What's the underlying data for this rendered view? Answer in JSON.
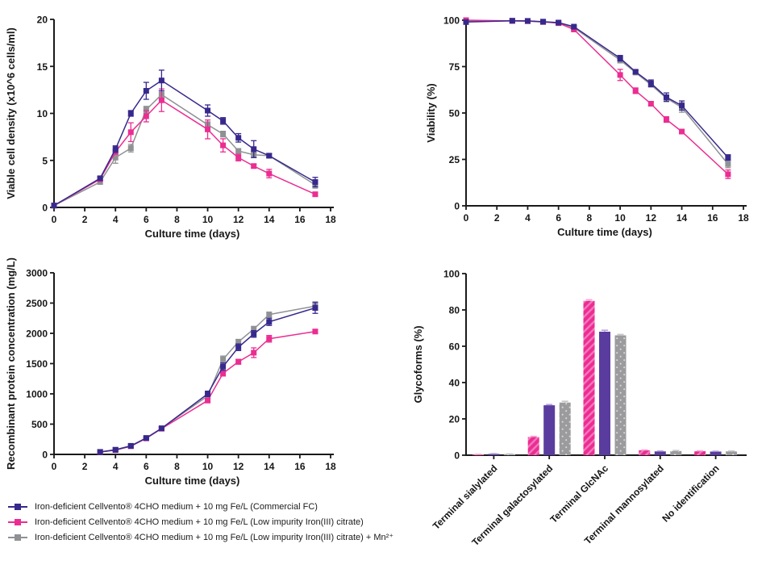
{
  "colors": {
    "axis": "#1a1a1a",
    "purple_line": "#37298C",
    "pink": "#EB2D92",
    "gray_line": "#8F9194",
    "purple_bar": "#5A3C9E",
    "gray_bar": "#9B9B9D"
  },
  "legend": {
    "items": [
      {
        "label": "Iron-deficient Cellvento® 4CHO medium + 10 mg Fe/L (Commercial FC)",
        "color": "#37298C"
      },
      {
        "label": "Iron-deficient Cellvento® 4CHO medium + 10 mg Fe/L (Low impurity Iron(III) citrate)",
        "color": "#EB2D92"
      },
      {
        "label": "Iron-deficient Cellvento® 4CHO medium + 10 mg Fe/L (Low impurity Iron(III) citrate) + Mn²⁺",
        "color": "#8F9194"
      }
    ]
  },
  "chart_data": [
    {
      "type": "line",
      "name": "viable-cell-density",
      "xlabel": "Culture time (days)",
      "ylabel": "Viable cell density (x10^6 cells/ml)",
      "xlim": [
        0,
        18
      ],
      "xticks": [
        0,
        2,
        4,
        6,
        8,
        10,
        12,
        14,
        16,
        18
      ],
      "ylim": [
        0,
        20
      ],
      "yticks": [
        0,
        5,
        10,
        15,
        20
      ],
      "grid": false,
      "x": [
        0,
        3,
        4,
        5,
        6,
        7,
        10,
        11,
        12,
        13,
        14,
        17
      ],
      "series": [
        {
          "name": "Commercial FC",
          "color": "#37298C",
          "values": [
            0.2,
            3.1,
            6.2,
            10.0,
            12.4,
            13.5,
            10.3,
            9.2,
            7.4,
            6.2,
            5.5,
            2.7
          ],
          "errors": [
            0,
            0.2,
            0.35,
            0.3,
            0.9,
            1.1,
            0.6,
            0.35,
            0.45,
            0.9,
            0.2,
            0.5
          ]
        },
        {
          "name": "Low impurity Iron(III) citrate",
          "color": "#EB2D92",
          "values": [
            0.2,
            3.0,
            5.9,
            8.0,
            9.7,
            11.4,
            8.3,
            6.6,
            5.3,
            4.4,
            3.6,
            1.4
          ],
          "errors": [
            0,
            0.2,
            0.25,
            1.0,
            0.6,
            1.2,
            1.0,
            0.7,
            0.35,
            0.2,
            0.45,
            0.2
          ]
        },
        {
          "name": "Low impurity Iron(III) citrate + Mn²⁺",
          "color": "#8F9194",
          "values": [
            0.2,
            2.7,
            5.3,
            6.3,
            10.4,
            12.0,
            8.8,
            7.8,
            6.0,
            5.6,
            5.5,
            2.4
          ],
          "errors": [
            0,
            0.2,
            0.6,
            0.4,
            0.35,
            0.4,
            0.3,
            0.3,
            0.25,
            0.3,
            0.2,
            0.35
          ]
        }
      ]
    },
    {
      "type": "line",
      "name": "viability",
      "xlabel": "Culture time (days)",
      "ylabel": "Viability (%)",
      "xlim": [
        0,
        18
      ],
      "xticks": [
        0,
        2,
        4,
        6,
        8,
        10,
        12,
        14,
        16,
        18
      ],
      "ylim": [
        0,
        100
      ],
      "yticks": [
        0,
        25,
        50,
        75,
        100
      ],
      "grid": false,
      "x": [
        0,
        3,
        4,
        5,
        6,
        7,
        10,
        11,
        12,
        13,
        14,
        17
      ],
      "series": [
        {
          "name": "Commercial FC",
          "color": "#37298C",
          "values": [
            99,
            99.7,
            99.6,
            99.2,
            98.7,
            96.5,
            79.5,
            72.2,
            66,
            58.5,
            54,
            26
          ],
          "errors": [
            0,
            0,
            0,
            0,
            0,
            0.6,
            1.5,
            1,
            1.8,
            2.3,
            2.5,
            1.5
          ]
        },
        {
          "name": "Low impurity Iron(III) citrate",
          "color": "#EB2D92",
          "values": [
            100,
            99.6,
            99.5,
            99.1,
            98.4,
            95,
            70.5,
            62,
            55,
            46.5,
            40,
            17
          ],
          "errors": [
            0.5,
            0,
            0,
            0,
            0,
            0.6,
            3,
            1.5,
            1,
            1.5,
            1,
            2.3
          ]
        },
        {
          "name": "Low impurity Iron(III) citrate + Mn²⁺",
          "color": "#8F9194",
          "values": [
            99.4,
            99.6,
            99.5,
            99,
            98.6,
            96,
            78.5,
            71.8,
            65.2,
            58,
            53,
            22.5
          ],
          "errors": [
            0,
            0,
            0,
            0,
            0,
            0.6,
            1.5,
            1,
            1,
            1.5,
            2.6,
            2
          ]
        }
      ]
    },
    {
      "type": "line",
      "name": "recombinant-protein-concentration",
      "xlabel": "Culture time (days)",
      "ylabel": "Recombinant protein concentration (mg/L)",
      "xlim": [
        0,
        18
      ],
      "xticks": [
        0,
        2,
        4,
        6,
        8,
        10,
        12,
        14,
        16,
        18
      ],
      "ylim": [
        0,
        3000
      ],
      "yticks": [
        0,
        500,
        1000,
        1500,
        2000,
        2500,
        3000
      ],
      "grid": false,
      "x": [
        3,
        4,
        5,
        6,
        7,
        10,
        11,
        12,
        13,
        14,
        17
      ],
      "series": [
        {
          "name": "Commercial FC",
          "color": "#37298C",
          "values": [
            40,
            75,
            140,
            270,
            430,
            1000,
            1450,
            1770,
            1990,
            2190,
            2420
          ],
          "errors": [
            0,
            0,
            0,
            15,
            25,
            45,
            60,
            55,
            55,
            60,
            90
          ]
        },
        {
          "name": "Low impurity Iron(III) citrate",
          "color": "#EB2D92",
          "values": [
            38,
            72,
            135,
            265,
            425,
            890,
            1340,
            1530,
            1680,
            1910,
            2030
          ],
          "errors": [
            0,
            0,
            0,
            12,
            18,
            30,
            45,
            40,
            80,
            55,
            30
          ]
        },
        {
          "name": "Low impurity Iron(III) citrate + Mn²⁺",
          "color": "#8F9194",
          "values": [
            42,
            78,
            142,
            272,
            432,
            965,
            1570,
            1860,
            2070,
            2310,
            2450
          ],
          "errors": [
            0,
            0,
            0,
            12,
            18,
            40,
            55,
            40,
            45,
            40,
            70
          ]
        }
      ]
    },
    {
      "type": "bar",
      "name": "glycoforms",
      "xlabel": "",
      "ylabel": "Glycoforms (%)",
      "ylim": [
        0,
        100
      ],
      "yticks": [
        0,
        20,
        40,
        60,
        80,
        100
      ],
      "grid": false,
      "categories": [
        "Terminal sialylated",
        "Terminal galactosylated",
        "Terminal GlcNAc",
        "Terminal mannosylated",
        "No identification"
      ],
      "series": [
        {
          "name": "Low impurity Iron(III) citrate",
          "color": "#EB2D92",
          "pattern": "hatch",
          "pattern_color": "#F577BE",
          "error_color": "#F6A8D3",
          "values": [
            0.4,
            10,
            85,
            2.7,
            2.2
          ],
          "errors": [
            0.1,
            0.4,
            0.6,
            0.2,
            0.2
          ]
        },
        {
          "name": "Commercial FC",
          "color": "#5A3C9E",
          "pattern": "none",
          "pattern_color": "",
          "error_color": "#B6A4DE",
          "values": [
            0.7,
            27.5,
            68,
            2.1,
            2.0
          ],
          "errors": [
            0.15,
            0.4,
            0.8,
            0.2,
            0.2
          ]
        },
        {
          "name": "Low impurity Iron(III) citrate + Mn²⁺",
          "color": "#9B9B9D",
          "pattern": "dots",
          "pattern_color": "#D8D8DA",
          "error_color": "#C6C6C8",
          "values": [
            0.6,
            29,
            66,
            2.3,
            2.1
          ],
          "errors": [
            0.1,
            0.7,
            0.5,
            0.3,
            0.2
          ]
        }
      ]
    }
  ]
}
